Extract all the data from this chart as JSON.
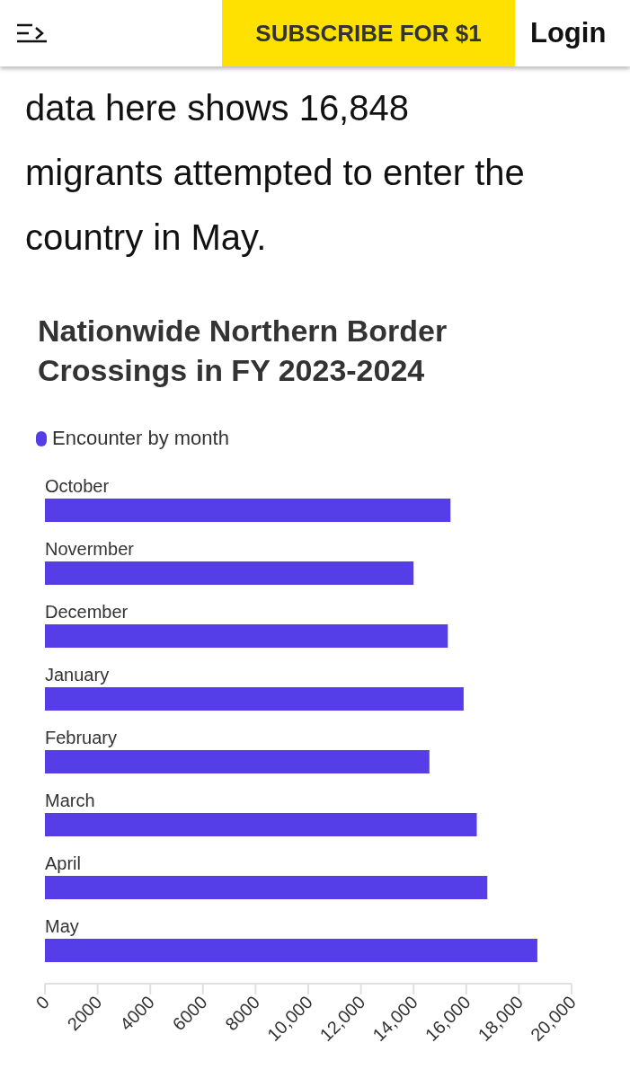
{
  "chart_data": {
    "type": "bar",
    "orientation": "horizontal",
    "title": "Nationwide Northern Border Crossings in FY 2023-2024",
    "categories": [
      "October",
      "Novermber",
      "December",
      "January",
      "February",
      "March",
      "April",
      "May"
    ],
    "series": [
      {
        "name": "Encounter by month",
        "color": "#553de8",
        "values": [
          15400,
          14000,
          15300,
          15900,
          14600,
          16400,
          16800,
          18700
        ]
      }
    ],
    "xlim": [
      0,
      20000
    ],
    "xticks": [
      0,
      2000,
      4000,
      6000,
      8000,
      "10,000",
      "12,000",
      "14,000",
      "16,000",
      "18,000",
      "20,000"
    ],
    "legend": "top left",
    "annotations": [
      "SUBSCRIBE FOR $1",
      "Login",
      "data here shows 16,848 migrants attempted to enter the country in May."
    ]
  }
}
